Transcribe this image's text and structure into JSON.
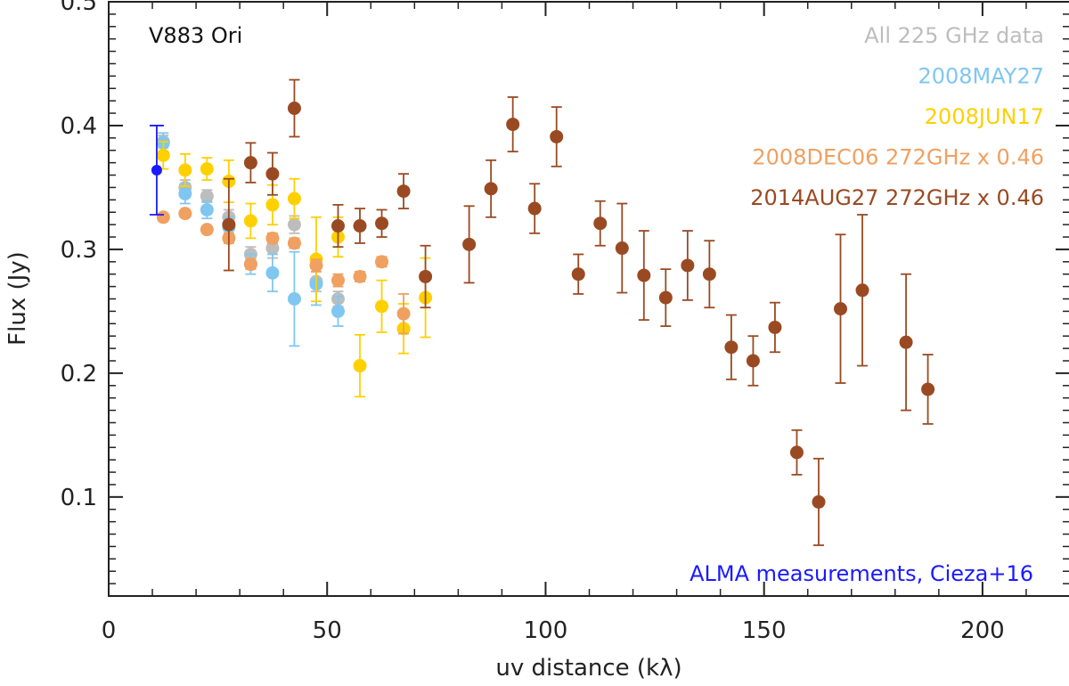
{
  "chart_data": {
    "type": "scatter",
    "object_label": "V883 Ori",
    "xlabel": "uv distance (kλ)",
    "ylabel": "Flux (Jy)",
    "xlim": [
      0,
      220
    ],
    "ylim": [
      0.02,
      0.5
    ],
    "xticks": [
      0,
      50,
      100,
      150,
      200
    ],
    "yticks": [
      0.1,
      0.2,
      0.3,
      0.4,
      0.5
    ],
    "xtick_labels": [
      "0",
      "50",
      "100",
      "150",
      "200"
    ],
    "ytick_labels": [
      "0.1",
      "0.2",
      "0.3",
      "0.4",
      "0.5"
    ],
    "legend_position": "top-right",
    "annotation": {
      "text": "ALMA measurements, Cieza+16",
      "color": "#1a1aff",
      "position": "bottom-right"
    },
    "series": [
      {
        "name": "All 225 GHz data",
        "color": "#bdbdbd",
        "points": [
          {
            "x": 12.5,
            "y": 0.387,
            "err": 0.005
          },
          {
            "x": 17.5,
            "y": 0.35,
            "err": 0.006
          },
          {
            "x": 22.5,
            "y": 0.343,
            "err": 0.005
          },
          {
            "x": 27.5,
            "y": 0.326,
            "err": 0.006
          },
          {
            "x": 32.5,
            "y": 0.296,
            "err": 0.006
          },
          {
            "x": 37.5,
            "y": 0.301,
            "err": 0.008
          },
          {
            "x": 42.5,
            "y": 0.32,
            "err": 0.007
          },
          {
            "x": 47.5,
            "y": 0.274,
            "err": 0.008
          },
          {
            "x": 52.5,
            "y": 0.26,
            "err": 0.006
          }
        ]
      },
      {
        "name": "2008MAY27",
        "color": "#7fc7f0",
        "points": [
          {
            "x": 12.5,
            "y": 0.386,
            "err": 0.008
          },
          {
            "x": 17.5,
            "y": 0.345,
            "err": 0.008
          },
          {
            "x": 22.5,
            "y": 0.332,
            "err": 0.007
          },
          {
            "x": 27.5,
            "y": 0.318,
            "err": 0.008
          },
          {
            "x": 32.5,
            "y": 0.288,
            "err": 0.008
          },
          {
            "x": 37.5,
            "y": 0.281,
            "err": 0.015
          },
          {
            "x": 42.5,
            "y": 0.26,
            "err": 0.038
          },
          {
            "x": 47.5,
            "y": 0.272,
            "err": 0.017
          },
          {
            "x": 52.5,
            "y": 0.25,
            "err": 0.012
          }
        ]
      },
      {
        "name": "2008JUN17",
        "color": "#ffd000",
        "points": [
          {
            "x": 12.5,
            "y": 0.376,
            "err": 0.011
          },
          {
            "x": 17.5,
            "y": 0.364,
            "err": 0.013
          },
          {
            "x": 22.5,
            "y": 0.365,
            "err": 0.009
          },
          {
            "x": 27.5,
            "y": 0.355,
            "err": 0.017
          },
          {
            "x": 32.5,
            "y": 0.323,
            "err": 0.014
          },
          {
            "x": 37.5,
            "y": 0.336,
            "err": 0.016
          },
          {
            "x": 42.5,
            "y": 0.341,
            "err": 0.016
          },
          {
            "x": 47.5,
            "y": 0.292,
            "err": 0.034
          },
          {
            "x": 52.5,
            "y": 0.31,
            "err": 0.016
          },
          {
            "x": 57.5,
            "y": 0.206,
            "err": 0.025
          },
          {
            "x": 62.5,
            "y": 0.254,
            "err": 0.021
          },
          {
            "x": 67.5,
            "y": 0.236,
            "err": 0.02
          },
          {
            "x": 72.5,
            "y": 0.261,
            "err": 0.032
          }
        ]
      },
      {
        "name": "2008DEC06 272GHz x 0.46",
        "color": "#f0a060",
        "points": [
          {
            "x": 12.5,
            "y": 0.326,
            "err": 0.003
          },
          {
            "x": 17.5,
            "y": 0.329,
            "err": 0.003
          },
          {
            "x": 22.5,
            "y": 0.316,
            "err": 0.003
          },
          {
            "x": 27.5,
            "y": 0.309,
            "err": 0.004
          },
          {
            "x": 32.5,
            "y": 0.288,
            "err": 0.004
          },
          {
            "x": 37.5,
            "y": 0.309,
            "err": 0.004
          },
          {
            "x": 42.5,
            "y": 0.305,
            "err": 0.004
          },
          {
            "x": 47.5,
            "y": 0.287,
            "err": 0.005
          },
          {
            "x": 52.5,
            "y": 0.275,
            "err": 0.005
          },
          {
            "x": 57.5,
            "y": 0.278,
            "err": 0.004
          },
          {
            "x": 62.5,
            "y": 0.29,
            "err": 0.004
          },
          {
            "x": 67.5,
            "y": 0.248,
            "err": 0.016
          }
        ]
      },
      {
        "name": "2014AUG27 272GHz x 0.46",
        "color": "#9a4a22",
        "points": [
          {
            "x": 27.5,
            "y": 0.32,
            "err": 0.037
          },
          {
            "x": 32.5,
            "y": 0.37,
            "err": 0.016
          },
          {
            "x": 37.5,
            "y": 0.361,
            "err": 0.017
          },
          {
            "x": 42.5,
            "y": 0.414,
            "err": 0.023
          },
          {
            "x": 52.5,
            "y": 0.319,
            "err": 0.017
          },
          {
            "x": 57.5,
            "y": 0.319,
            "err": 0.014
          },
          {
            "x": 62.5,
            "y": 0.321,
            "err": 0.011
          },
          {
            "x": 67.5,
            "y": 0.347,
            "err": 0.014
          },
          {
            "x": 72.5,
            "y": 0.278,
            "err": 0.025
          },
          {
            "x": 82.5,
            "y": 0.304,
            "err": 0.031
          },
          {
            "x": 87.5,
            "y": 0.349,
            "err": 0.023
          },
          {
            "x": 92.5,
            "y": 0.401,
            "err": 0.022
          },
          {
            "x": 97.5,
            "y": 0.333,
            "err": 0.02
          },
          {
            "x": 102.5,
            "y": 0.391,
            "err": 0.024
          },
          {
            "x": 107.5,
            "y": 0.28,
            "err": 0.016
          },
          {
            "x": 112.5,
            "y": 0.321,
            "err": 0.018
          },
          {
            "x": 117.5,
            "y": 0.301,
            "err": 0.036
          },
          {
            "x": 122.5,
            "y": 0.279,
            "err": 0.036
          },
          {
            "x": 127.5,
            "y": 0.261,
            "err": 0.023
          },
          {
            "x": 132.5,
            "y": 0.287,
            "err": 0.028
          },
          {
            "x": 137.5,
            "y": 0.28,
            "err": 0.027
          },
          {
            "x": 142.5,
            "y": 0.221,
            "err": 0.026
          },
          {
            "x": 147.5,
            "y": 0.21,
            "err": 0.02
          },
          {
            "x": 152.5,
            "y": 0.237,
            "err": 0.02
          },
          {
            "x": 157.5,
            "y": 0.136,
            "err": 0.018
          },
          {
            "x": 162.5,
            "y": 0.096,
            "err": 0.035
          },
          {
            "x": 167.5,
            "y": 0.252,
            "err": 0.06
          },
          {
            "x": 172.5,
            "y": 0.267,
            "err": 0.061
          },
          {
            "x": 182.5,
            "y": 0.225,
            "err": 0.055
          },
          {
            "x": 187.5,
            "y": 0.187,
            "err": 0.028
          }
        ]
      },
      {
        "name": "ALMA measurements, Cieza+16",
        "color": "#1a1aff",
        "show_in_legend": false,
        "points": [
          {
            "x": 11.0,
            "y": 0.364,
            "err": 0.036
          }
        ]
      }
    ]
  }
}
